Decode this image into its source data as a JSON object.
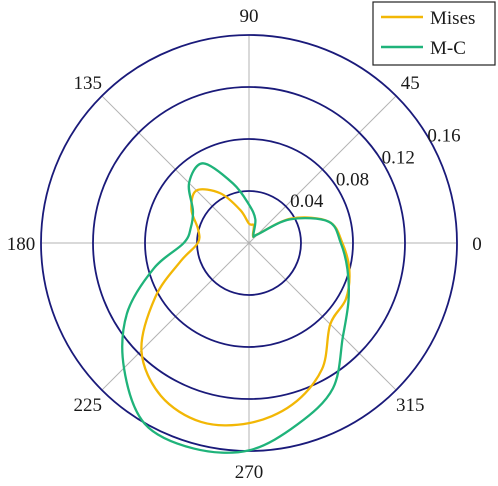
{
  "chart_data": {
    "type": "polar-line",
    "title": "",
    "theta_unit": "degrees",
    "angle_ticks": [
      0,
      45,
      90,
      135,
      180,
      225,
      270,
      315
    ],
    "angle_tick_labels": [
      "0",
      "45",
      "90",
      "135",
      "180",
      "225",
      "270",
      "315"
    ],
    "r_ticks": [
      0.04,
      0.08,
      0.12,
      0.16
    ],
    "r_tick_labels": [
      "0.04",
      "0.08",
      "0.12",
      "0.16"
    ],
    "rlim": [
      0,
      0.16
    ],
    "grid": true,
    "legend_position": "top-right",
    "grid_color": "#1a1a7a",
    "series": [
      {
        "name": "Mises",
        "color": "#f2b705",
        "theta": [
          0,
          15,
          30,
          45,
          60,
          75,
          90,
          105,
          120,
          135,
          150,
          165,
          180,
          195,
          210,
          225,
          240,
          255,
          270,
          285,
          300,
          315,
          330,
          345,
          360
        ],
        "r": [
          0.0718,
          0.0636,
          0.0377,
          0.0097,
          0.0062,
          0.0141,
          0.0149,
          0.0264,
          0.0442,
          0.0571,
          0.0511,
          0.0405,
          0.0394,
          0.0545,
          0.0832,
          0.117,
          0.1357,
          0.1425,
          0.1386,
          0.1287,
          0.1122,
          0.0884,
          0.0861,
          0.0799,
          0.0718
        ]
      },
      {
        "name": "M-C",
        "color": "#1fb37a",
        "theta": [
          0,
          15,
          30,
          45,
          60,
          75,
          90,
          105,
          120,
          135,
          150,
          165,
          180,
          195,
          210,
          225,
          240,
          255,
          270,
          285,
          300,
          315,
          330,
          345,
          360
        ],
        "r": [
          0.0706,
          0.0634,
          0.0363,
          0.0095,
          0.0068,
          0.0188,
          0.0295,
          0.0474,
          0.0708,
          0.0652,
          0.0498,
          0.0463,
          0.0502,
          0.0759,
          0.1084,
          0.136,
          0.1605,
          0.1637,
          0.1595,
          0.1444,
          0.1291,
          0.1021,
          0.0884,
          0.0784,
          0.0706
        ]
      }
    ]
  }
}
